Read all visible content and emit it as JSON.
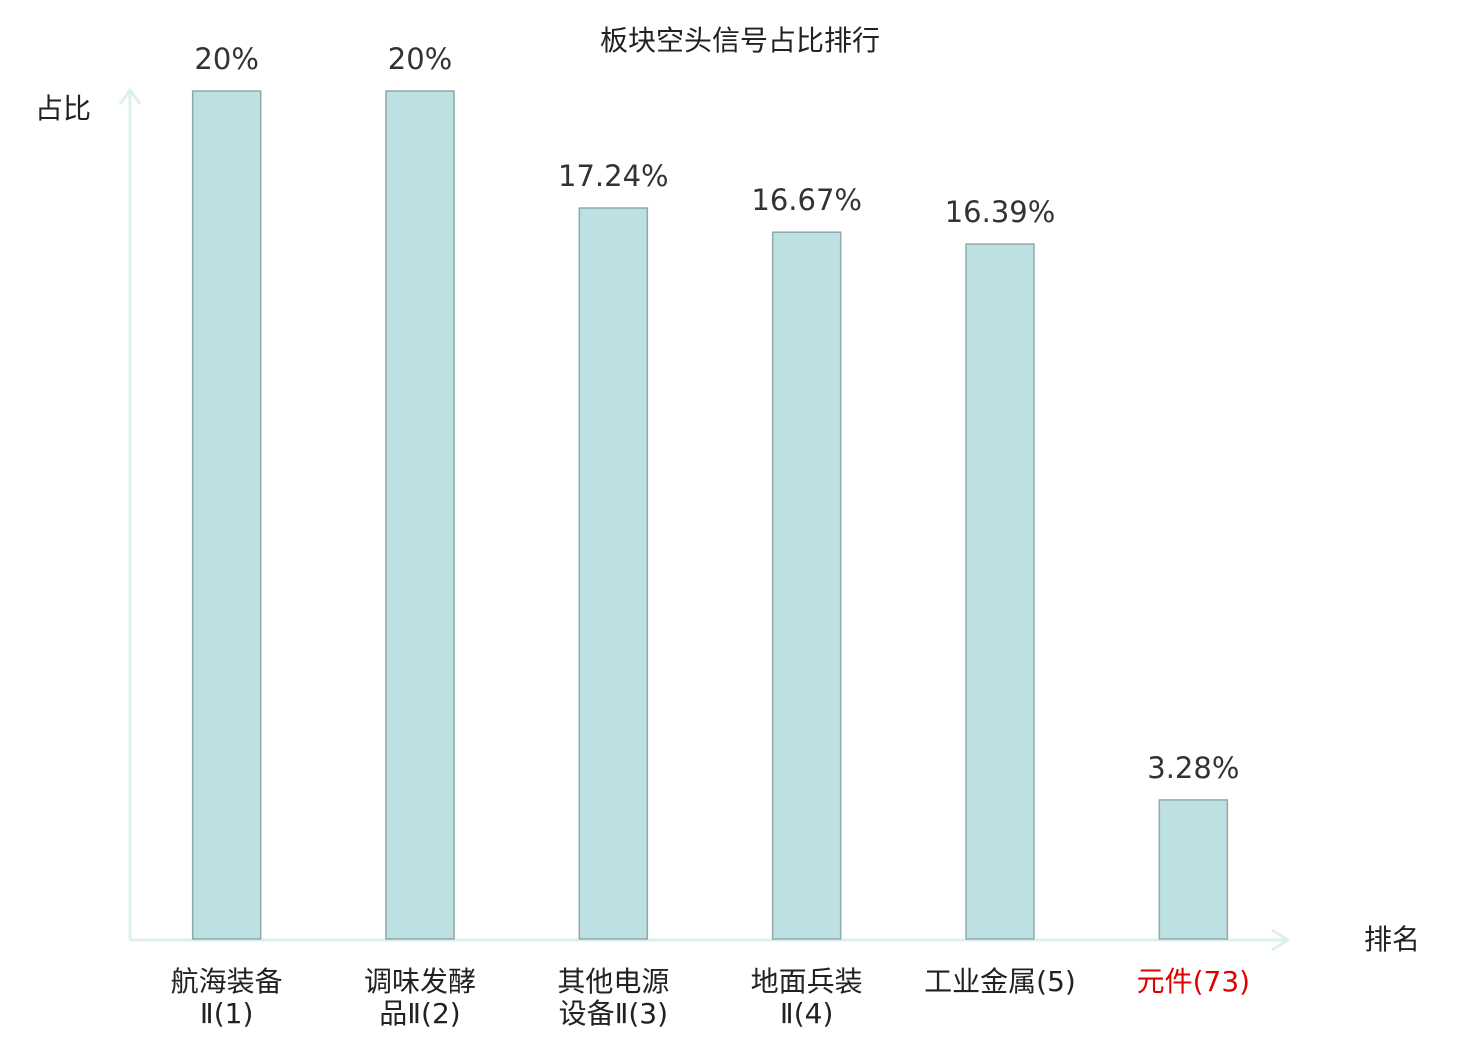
{
  "chart_data": {
    "type": "bar",
    "title": "板块空头信号占比排行",
    "y_label": "占比",
    "x_label": "排名",
    "categories": [
      "航海装备\nⅡ(1)",
      "调味发酵\n品Ⅱ(2)",
      "其他电源\n设备Ⅱ(3)",
      "地面兵装\nⅡ(4)",
      "工业金属(5)",
      "元件(73)"
    ],
    "category_colors": [
      "#222222",
      "#222222",
      "#222222",
      "#222222",
      "#222222",
      "#e00000"
    ],
    "values": [
      20,
      20,
      17.24,
      16.67,
      16.39,
      3.28
    ],
    "value_labels": [
      "20%",
      "20%",
      "17.24%",
      "16.67%",
      "16.39%",
      "3.28%"
    ],
    "color": "#bde0e2",
    "ylim": [
      0,
      20
    ]
  }
}
